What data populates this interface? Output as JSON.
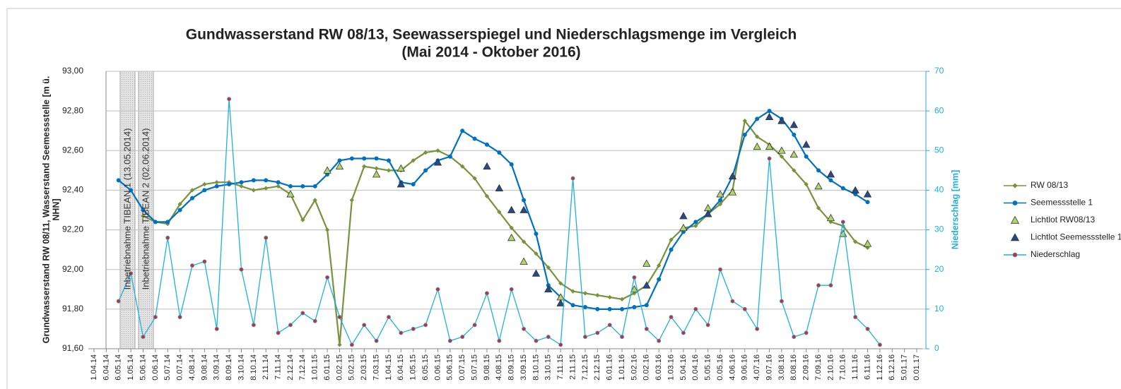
{
  "chart_data": {
    "type": "line",
    "title": [
      "Gundwasserstand RW 08/13, Seewasserspiegel und Niederschlagsmenge im Vergleich",
      "(Mai 2014 -  Oktober 2016)"
    ],
    "ylabel": [
      "Grundwasserstand RW 08/11, Wasserstand Seemessstelle [m ü.",
      "NHN]"
    ],
    "y2label": "Niederschlag [mm]",
    "annotations": [
      "Inbetriebnahme TIBEAN 1 (13.05.2014)",
      "Inbetriebnahme TIBEAN 2 (02.06.2014)"
    ],
    "categories": [
      "1.04.14",
      "6.04.14",
      "6.05.14",
      "1.05.14",
      "5.06.14",
      "0.06.14",
      "5.07.14",
      "0.07.14",
      "4.08.14",
      "9.08.14",
      "3.09.14",
      "8.09.14",
      "3.10.14",
      "8.10.14",
      "2.11.14",
      "7.11.14",
      "2.12.14",
      "7.12.14",
      "1.01.15",
      "6.01.15",
      "0.02.15",
      "5.02.15",
      "2.03.15",
      "7.03.15",
      "1.04.15",
      "6.04.15",
      "1.05.15",
      "6.05.15",
      "0.06.15",
      "5.06.15",
      "0.07.15",
      "5.07.15",
      "9.08.15",
      "4.08.15",
      "8.09.15",
      "3.09.15",
      "8.10.15",
      "3.10.15",
      "7.11.15",
      "2.11.15",
      "7.12.15",
      "2.12.15",
      "6.01.16",
      "1.01.16",
      "5.02.16",
      "0.02.16",
      "6.03.16",
      "1.03.16",
      "5.04.16",
      "0.04.16",
      "5.05.16",
      "0.05.16",
      "4.06.16",
      "9.06.16",
      "4.07.16",
      "9.07.16",
      "3.08.16",
      "8.08.16",
      "2.09.16",
      "7.09.16",
      "2.10.16",
      "7.10.16",
      "1.11.16",
      "6.11.16",
      "1.12.16",
      "6.12.16",
      "5.01.17",
      "0.01.17"
    ],
    "ylim": [
      91.6,
      93.0
    ],
    "yticks": [
      {
        "value": 91.6,
        "label": "91,60"
      },
      {
        "value": 91.8,
        "label": "91,80"
      },
      {
        "value": 92.0,
        "label": "92,00"
      },
      {
        "value": 92.2,
        "label": "92,20"
      },
      {
        "value": 92.4,
        "label": "92,40"
      },
      {
        "value": 92.6,
        "label": "92,60"
      },
      {
        "value": 92.8,
        "label": "92,80"
      },
      {
        "value": 93.0,
        "label": "93,00"
      }
    ],
    "y2lim": [
      0,
      70
    ],
    "y2ticks": [
      0,
      10,
      20,
      30,
      40,
      50,
      60,
      70
    ],
    "y2color": "#1fb0e0",
    "grid": true,
    "series": [
      {
        "name": "RW 08/13",
        "type": "line",
        "marker": "diamond",
        "color": "#77933c",
        "marker_fill": "#77933c",
        "values": [
          null,
          null,
          null,
          null,
          92.27,
          92.24,
          92.23,
          92.33,
          92.4,
          92.43,
          92.44,
          92.44,
          92.42,
          92.4,
          92.41,
          92.42,
          92.38,
          92.25,
          92.35,
          92.2,
          91.62,
          92.35,
          92.52,
          92.51,
          92.5,
          92.5,
          92.55,
          92.59,
          92.6,
          92.57,
          92.52,
          92.46,
          92.37,
          92.29,
          92.21,
          92.14,
          92.08,
          92.01,
          91.93,
          91.89,
          91.88,
          91.87,
          91.86,
          91.85,
          91.88,
          91.92,
          92.02,
          92.15,
          92.21,
          92.22,
          92.28,
          92.33,
          92.4,
          92.75,
          92.67,
          92.63,
          92.57,
          92.5,
          92.43,
          92.31,
          92.24,
          92.22,
          92.14,
          92.11,
          null,
          null,
          null,
          null
        ]
      },
      {
        "name": "Seemessstelle 1",
        "type": "line",
        "marker": "circle",
        "color": "#0070c0",
        "marker_fill": "#0070c0",
        "values": [
          null,
          null,
          92.45,
          92.4,
          92.3,
          92.24,
          92.24,
          92.3,
          92.36,
          92.4,
          92.42,
          92.43,
          92.44,
          92.45,
          92.45,
          92.44,
          92.42,
          92.42,
          92.42,
          92.48,
          92.55,
          92.56,
          92.56,
          92.56,
          92.55,
          92.44,
          92.43,
          92.5,
          92.55,
          92.57,
          92.7,
          92.66,
          92.63,
          92.59,
          92.53,
          92.35,
          92.18,
          91.92,
          91.86,
          91.82,
          91.81,
          91.8,
          91.8,
          91.8,
          91.81,
          91.82,
          91.95,
          92.1,
          92.19,
          92.24,
          92.28,
          92.35,
          92.47,
          92.68,
          92.76,
          92.8,
          92.76,
          92.68,
          92.57,
          92.5,
          92.45,
          92.41,
          92.38,
          92.34,
          null,
          null,
          null,
          null
        ]
      },
      {
        "name": "Lichtlot RW08/13",
        "type": "scatter",
        "marker": "triangle",
        "color": "#2b3a1a",
        "marker_fill": "#b5d17a",
        "values": [
          null,
          null,
          null,
          null,
          null,
          null,
          null,
          null,
          null,
          null,
          null,
          null,
          null,
          null,
          null,
          null,
          92.38,
          null,
          null,
          92.5,
          92.52,
          null,
          null,
          92.48,
          null,
          92.51,
          null,
          null,
          null,
          null,
          null,
          null,
          null,
          null,
          92.16,
          92.04,
          null,
          null,
          91.86,
          null,
          null,
          null,
          null,
          null,
          91.9,
          92.03,
          null,
          null,
          92.21,
          null,
          92.31,
          92.38,
          92.39,
          null,
          92.62,
          92.62,
          92.6,
          92.58,
          null,
          92.42,
          92.26,
          92.18,
          null,
          92.13,
          null,
          null,
          null,
          null
        ]
      },
      {
        "name": "Lichtlot Seemessstelle 1",
        "type": "scatter",
        "marker": "triangle",
        "color": "#1f3050",
        "marker_fill": "#2e4a7a",
        "values": [
          null,
          null,
          null,
          null,
          null,
          null,
          null,
          null,
          null,
          null,
          null,
          null,
          null,
          null,
          null,
          null,
          null,
          null,
          null,
          null,
          null,
          null,
          null,
          null,
          null,
          92.43,
          null,
          null,
          92.54,
          null,
          null,
          null,
          92.52,
          92.41,
          92.3,
          92.3,
          91.98,
          91.9,
          91.83,
          null,
          null,
          null,
          null,
          null,
          null,
          91.92,
          null,
          null,
          92.27,
          null,
          92.28,
          null,
          92.47,
          null,
          null,
          92.77,
          92.75,
          92.73,
          92.63,
          null,
          92.48,
          null,
          92.4,
          92.38,
          null,
          null,
          null,
          null
        ]
      },
      {
        "name": "Niederschlag",
        "type": "line",
        "marker": "circle",
        "axis": "y2",
        "color": "#1fb0e0",
        "marker_fill": "#e02424",
        "values": [
          null,
          null,
          12,
          19,
          3,
          8,
          28,
          8,
          21,
          22,
          5,
          63,
          20,
          6,
          28,
          4,
          6,
          9,
          7,
          18,
          8,
          1,
          6,
          2,
          8,
          4,
          5,
          6,
          15,
          2,
          3,
          6,
          14,
          2,
          15,
          5,
          2,
          3,
          1,
          43,
          3,
          4,
          6,
          3,
          18,
          5,
          2,
          8,
          4,
          10,
          6,
          20,
          12,
          10,
          5,
          48,
          12,
          3,
          4,
          16,
          16,
          32,
          8,
          5,
          1,
          null,
          null,
          null
        ]
      }
    ]
  }
}
